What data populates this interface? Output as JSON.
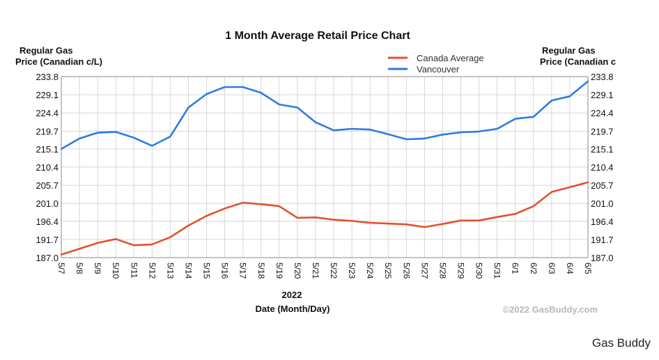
{
  "chart_data": {
    "type": "line",
    "title": "1 Month Average Retail Price Chart",
    "ylabel_left_line1": "Regular Gas",
    "ylabel_left_line2": "Price (Canadian c/L)",
    "ylabel_right_line1": "Regular Gas",
    "ylabel_right_line2": "Price (Canadian c",
    "xlabel_year": "2022",
    "xlabel": "Date (Month/Day)",
    "ylim": [
      187.0,
      233.8
    ],
    "yticks": [
      "187.0",
      "191.7",
      "196.4",
      "201.0",
      "205.7",
      "210.4",
      "215.1",
      "219.7",
      "224.4",
      "229.1",
      "233.8"
    ],
    "categories": [
      "5/7",
      "5/8",
      "5/9",
      "5/10",
      "5/11",
      "5/12",
      "5/13",
      "5/14",
      "5/15",
      "5/16",
      "5/17",
      "5/18",
      "5/19",
      "5/20",
      "5/21",
      "5/22",
      "5/23",
      "5/24",
      "5/25",
      "5/26",
      "5/27",
      "5/28",
      "5/29",
      "5/30",
      "5/31",
      "6/1",
      "6/2",
      "6/3",
      "6/4",
      "6/5"
    ],
    "grid": true,
    "legend_position": "top-right",
    "series": [
      {
        "name": "Canada Average",
        "color": "#e0522f",
        "values": [
          187.8,
          189.3,
          190.8,
          191.8,
          190.2,
          190.4,
          192.3,
          195.3,
          197.8,
          199.7,
          201.2,
          200.8,
          200.3,
          197.3,
          197.4,
          196.8,
          196.5,
          196.0,
          195.8,
          195.6,
          194.9,
          195.7,
          196.6,
          196.6,
          197.5,
          198.3,
          200.3,
          204.0,
          205.2,
          206.5
        ]
      },
      {
        "name": "Vancouver",
        "color": "#2e7be0",
        "values": [
          215.1,
          217.8,
          219.3,
          219.5,
          218.0,
          215.9,
          218.3,
          225.8,
          229.3,
          231.1,
          231.1,
          229.6,
          226.6,
          225.8,
          222.0,
          219.9,
          220.3,
          220.1,
          218.9,
          217.6,
          217.8,
          218.8,
          219.4,
          219.6,
          220.3,
          222.9,
          223.4,
          227.6,
          228.7,
          232.6
        ]
      }
    ]
  },
  "copyright": "©2022 GasBuddy.com",
  "watermark": "Gas Buddy"
}
